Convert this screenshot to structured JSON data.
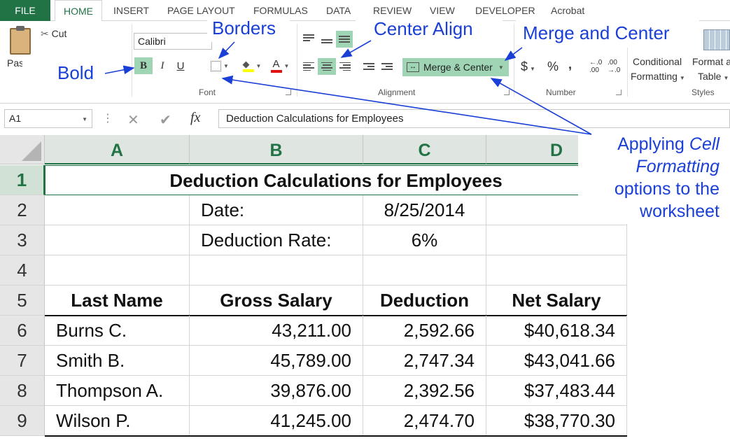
{
  "ribbon_tabs": [
    "FILE",
    "HOME",
    "INSERT",
    "PAGE LAYOUT",
    "FORMULAS",
    "DATA",
    "REVIEW",
    "VIEW",
    "DEVELOPER",
    "Acrobat"
  ],
  "clipboard": {
    "cut_label": "Cut",
    "paste_label": "Paste"
  },
  "font": {
    "name": "Calibri",
    "bold": "B",
    "italic": "I",
    "underline": "U",
    "group_label": "Font"
  },
  "alignment": {
    "merge_label": "Merge & Center",
    "group_label": "Alignment"
  },
  "number": {
    "currency": "$",
    "percent": "%",
    "comma": ",",
    "inc_decimal": ".00 ←.0",
    "group_label": "Number"
  },
  "styles": {
    "conditional": "Conditional",
    "formatting": "Formatting",
    "format_as": "Format as",
    "table": "Table",
    "group_label": "Styles"
  },
  "formula_bar": {
    "name_box": "A1",
    "fx": "fx",
    "content": "Deduction Calculations for Employees"
  },
  "columns": [
    "A",
    "B",
    "C",
    "D"
  ],
  "rows": [
    "1",
    "2",
    "3",
    "4",
    "5",
    "6",
    "7",
    "8",
    "9"
  ],
  "sheet": {
    "title": "Deduction Calculations for Employees",
    "date_label": "Date:",
    "date_value": "8/25/2014",
    "rate_label": "Deduction Rate:",
    "rate_value": "6%",
    "headers": [
      "Last Name",
      "Gross Salary",
      "Deduction",
      "Net Salary"
    ],
    "data": [
      [
        "Burns C.",
        "43,211.00",
        "2,592.66",
        "$40,618.34"
      ],
      [
        "Smith B.",
        "45,789.00",
        "2,747.34",
        "$43,041.66"
      ],
      [
        "Thompson A.",
        "39,876.00",
        "2,392.56",
        "$37,483.44"
      ],
      [
        "Wilson P.",
        "41,245.00",
        "2,474.70",
        "$38,770.30"
      ]
    ]
  },
  "annotations": {
    "bold": "Bold",
    "borders": "Borders",
    "center_align": "Center Align",
    "merge_center": "Merge and Center",
    "applying_1": "Applying ",
    "applying_cell": "Cell",
    "applying_2": "Formatting",
    "applying_3": "options to the",
    "applying_4": "worksheet"
  },
  "colors": {
    "excel_green": "#217346",
    "highlight": "#9fd5b5",
    "annotation_blue": "#1a3fd6"
  }
}
